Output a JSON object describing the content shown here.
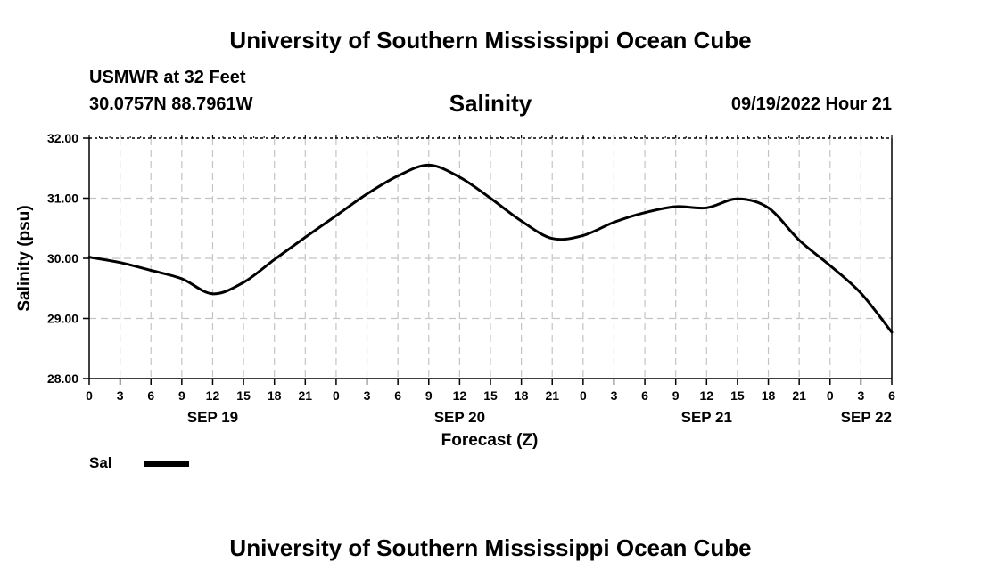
{
  "header": {
    "title": "University of Southern Mississippi Ocean Cube",
    "station": "USMWR at 32 Feet",
    "coordinates": "30.0757N  88.7961W",
    "run_time": "09/19/2022 Hour 21"
  },
  "footer": {
    "title": "University of Southern Mississippi Ocean Cube"
  },
  "chart_data": {
    "type": "line",
    "title": "Salinity",
    "xlabel": "Forecast (Z)",
    "ylabel": "Salinity (psu)",
    "ylim": [
      28,
      32
    ],
    "yticks": [
      "28.00",
      "29.00",
      "30.00",
      "31.00",
      "32.00"
    ],
    "xlim": [
      "2022-09-19 00Z",
      "2022-09-22 06Z"
    ],
    "xtick_labels": [
      "0",
      "3",
      "6",
      "9",
      "12",
      "15",
      "18",
      "21",
      "0",
      "3",
      "6",
      "9",
      "12",
      "15",
      "18",
      "21",
      "0",
      "3",
      "6",
      "9",
      "12",
      "15",
      "18",
      "21",
      "0",
      "3",
      "6"
    ],
    "date_labels": [
      "SEP 19",
      "SEP 20",
      "SEP 21",
      "SEP 22"
    ],
    "grid": true,
    "legend_position": "bottom-left",
    "series": [
      {
        "name": "Sal",
        "color": "#000000",
        "x": [
          "2022-09-19 00Z",
          "2022-09-19 03Z",
          "2022-09-19 06Z",
          "2022-09-19 09Z",
          "2022-09-19 12Z",
          "2022-09-19 15Z",
          "2022-09-19 18Z",
          "2022-09-19 21Z",
          "2022-09-20 00Z",
          "2022-09-20 03Z",
          "2022-09-20 06Z",
          "2022-09-20 09Z",
          "2022-09-20 12Z",
          "2022-09-20 15Z",
          "2022-09-20 18Z",
          "2022-09-20 21Z",
          "2022-09-21 00Z",
          "2022-09-21 03Z",
          "2022-09-21 06Z",
          "2022-09-21 09Z",
          "2022-09-21 12Z",
          "2022-09-21 15Z",
          "2022-09-21 18Z",
          "2022-09-21 21Z",
          "2022-09-22 00Z",
          "2022-09-22 03Z",
          "2022-09-22 06Z"
        ],
        "values": [
          30.02,
          29.93,
          29.8,
          29.66,
          29.41,
          29.6,
          29.98,
          30.35,
          30.71,
          31.07,
          31.37,
          31.55,
          31.35,
          31.0,
          30.62,
          30.33,
          30.38,
          30.6,
          30.76,
          30.86,
          30.84,
          30.99,
          30.84,
          30.3,
          29.88,
          29.42,
          28.77
        ]
      }
    ]
  }
}
